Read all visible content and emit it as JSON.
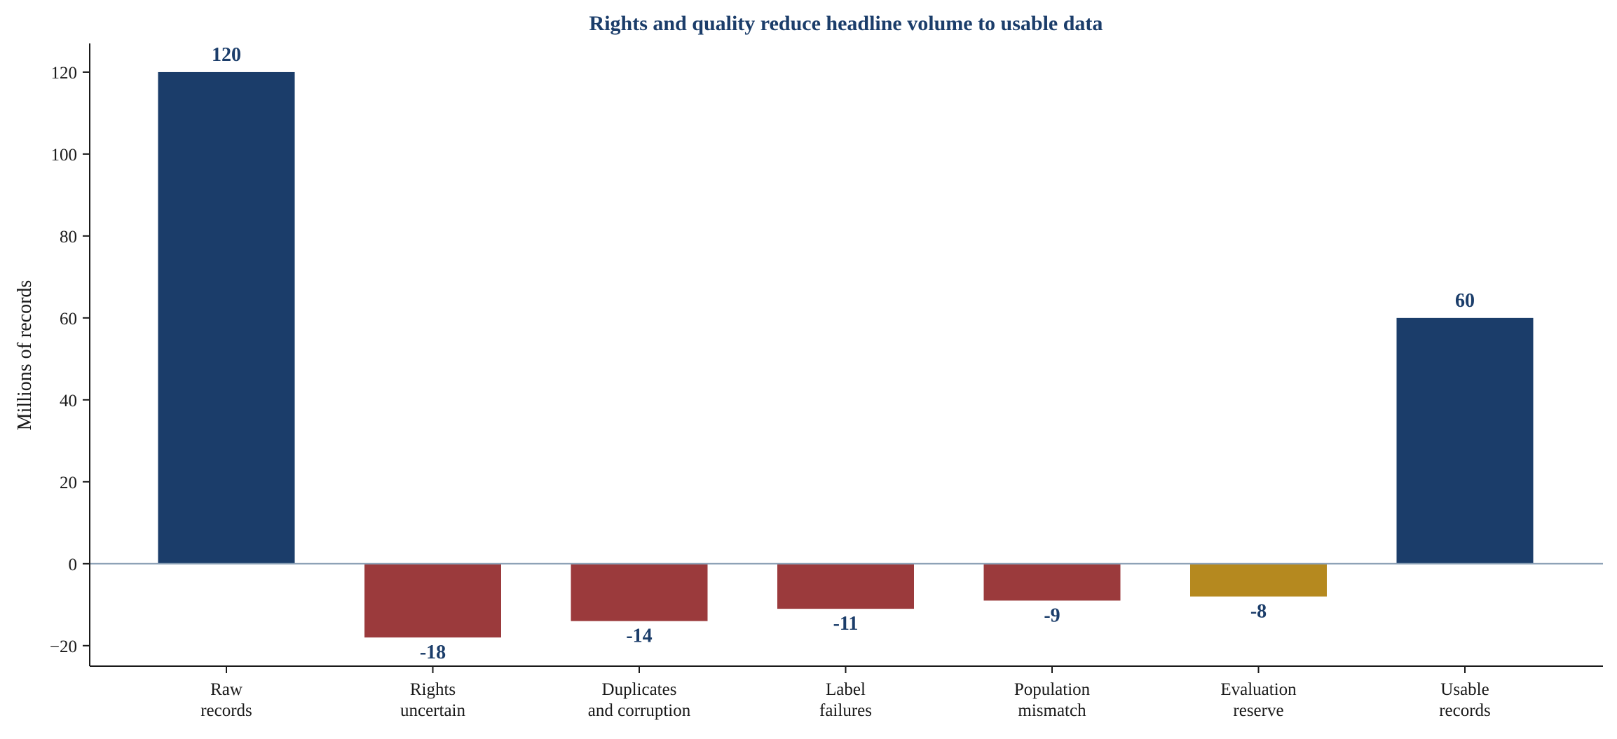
{
  "chart_data": {
    "type": "bar",
    "title": "Rights and quality reduce headline volume to usable data",
    "xlabel": "",
    "ylabel": "Millions of records",
    "ylim": [
      -25,
      127
    ],
    "yticks": [
      -20,
      0,
      20,
      40,
      60,
      80,
      100,
      120
    ],
    "ytick_labels": [
      "−20",
      "0",
      "20",
      "40",
      "60",
      "80",
      "100",
      "120"
    ],
    "grid": false,
    "categories": [
      [
        "Raw",
        "records"
      ],
      [
        "Rights",
        "uncertain"
      ],
      [
        "Duplicates",
        "and corruption"
      ],
      [
        "Label",
        "failures"
      ],
      [
        "Population",
        "mismatch"
      ],
      [
        "Evaluation",
        "reserve"
      ],
      [
        "Usable",
        "records"
      ]
    ],
    "values": [
      120,
      -18,
      -14,
      -11,
      -9,
      -8,
      60
    ],
    "value_labels": [
      "120",
      "-18",
      "-14",
      "-11",
      "-9",
      "-8",
      "60"
    ],
    "bar_colors": [
      "#1b3d6a",
      "#9b3a3c",
      "#9b3a3c",
      "#9b3a3c",
      "#9b3a3c",
      "#b5891f",
      "#1b3d6a"
    ],
    "label_color": "#1b3d6a",
    "zero_line_color": "#8a9fb5"
  }
}
